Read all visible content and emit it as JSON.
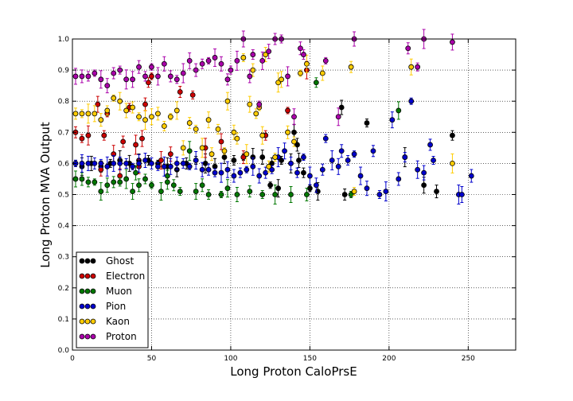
{
  "chart_data": {
    "type": "scatter",
    "title": "",
    "xlabel": "Long Proton CaloPrsE",
    "ylabel": "Long Proton MVA Output",
    "xlim": [
      0,
      280
    ],
    "ylim": [
      0.0,
      1.0
    ],
    "x_ticks": [
      "0",
      "50",
      "100",
      "150",
      "200",
      "250"
    ],
    "y_ticks": [
      "0.0",
      "0.1",
      "0.2",
      "0.3",
      "0.4",
      "0.5",
      "0.6",
      "0.7",
      "0.8",
      "0.9",
      "1.0"
    ],
    "grid": true,
    "legend_position": "lower-left",
    "series": [
      {
        "name": "Ghost",
        "color": "#000000",
        "points": [
          [
            2,
            0.6
          ],
          [
            6,
            0.59
          ],
          [
            12,
            0.6
          ],
          [
            18,
            0.59
          ],
          [
            24,
            0.6
          ],
          [
            30,
            0.61
          ],
          [
            36,
            0.6
          ],
          [
            42,
            0.61
          ],
          [
            48,
            0.61
          ],
          [
            54,
            0.6
          ],
          [
            60,
            0.59
          ],
          [
            66,
            0.58
          ],
          [
            72,
            0.6
          ],
          [
            78,
            0.61
          ],
          [
            84,
            0.6
          ],
          [
            90,
            0.59
          ],
          [
            96,
            0.62
          ],
          [
            102,
            0.61
          ],
          [
            108,
            0.62
          ],
          [
            114,
            0.62
          ],
          [
            120,
            0.62
          ],
          [
            126,
            0.6
          ],
          [
            132,
            0.61
          ],
          [
            138,
            0.6
          ],
          [
            140,
            0.7
          ],
          [
            142,
            0.66
          ],
          [
            146,
            0.57
          ],
          [
            150,
            0.52
          ],
          [
            155,
            0.51
          ],
          [
            170,
            0.78
          ],
          [
            172,
            0.5
          ],
          [
            186,
            0.73
          ],
          [
            210,
            0.62
          ],
          [
            222,
            0.53
          ],
          [
            230,
            0.51
          ],
          [
            240,
            0.69
          ],
          [
            125,
            0.53
          ],
          [
            130,
            0.52
          ],
          [
            143,
            0.61
          ]
        ]
      },
      {
        "name": "Electron",
        "color": "#cc0000",
        "points": [
          [
            2,
            0.7
          ],
          [
            6,
            0.68
          ],
          [
            10,
            0.69
          ],
          [
            16,
            0.79
          ],
          [
            18,
            0.58
          ],
          [
            20,
            0.69
          ],
          [
            22,
            0.76
          ],
          [
            26,
            0.63
          ],
          [
            30,
            0.56
          ],
          [
            32,
            0.67
          ],
          [
            36,
            0.78
          ],
          [
            40,
            0.66
          ],
          [
            44,
            0.68
          ],
          [
            46,
            0.79
          ],
          [
            48,
            0.86
          ],
          [
            50,
            0.88
          ],
          [
            56,
            0.61
          ],
          [
            62,
            0.63
          ],
          [
            68,
            0.83
          ],
          [
            76,
            0.82
          ],
          [
            84,
            0.65
          ],
          [
            94,
            0.67
          ],
          [
            108,
            0.62
          ],
          [
            122,
            0.69
          ],
          [
            136,
            0.77
          ],
          [
            148,
            0.9
          ],
          [
            42,
            0.59
          ]
        ]
      },
      {
        "name": "Muon",
        "color": "#007700",
        "points": [
          [
            2,
            0.55
          ],
          [
            6,
            0.55
          ],
          [
            10,
            0.54
          ],
          [
            14,
            0.54
          ],
          [
            18,
            0.51
          ],
          [
            22,
            0.53
          ],
          [
            26,
            0.54
          ],
          [
            30,
            0.54
          ],
          [
            34,
            0.55
          ],
          [
            38,
            0.51
          ],
          [
            42,
            0.53
          ],
          [
            46,
            0.55
          ],
          [
            50,
            0.53
          ],
          [
            56,
            0.51
          ],
          [
            60,
            0.54
          ],
          [
            64,
            0.53
          ],
          [
            68,
            0.51
          ],
          [
            74,
            0.64
          ],
          [
            78,
            0.51
          ],
          [
            82,
            0.53
          ],
          [
            86,
            0.5
          ],
          [
            94,
            0.5
          ],
          [
            98,
            0.52
          ],
          [
            104,
            0.5
          ],
          [
            112,
            0.51
          ],
          [
            120,
            0.5
          ],
          [
            128,
            0.5
          ],
          [
            138,
            0.5
          ],
          [
            148,
            0.5
          ],
          [
            154,
            0.86
          ],
          [
            176,
            0.5
          ],
          [
            206,
            0.77
          ],
          [
            40,
            0.57
          ],
          [
            60,
            0.56
          ]
        ]
      },
      {
        "name": "Pion",
        "color": "#0000cc",
        "points": [
          [
            2,
            0.6
          ],
          [
            6,
            0.6
          ],
          [
            10,
            0.6
          ],
          [
            14,
            0.6
          ],
          [
            18,
            0.6
          ],
          [
            22,
            0.59
          ],
          [
            26,
            0.6
          ],
          [
            30,
            0.6
          ],
          [
            34,
            0.6
          ],
          [
            38,
            0.59
          ],
          [
            42,
            0.6
          ],
          [
            46,
            0.61
          ],
          [
            50,
            0.6
          ],
          [
            54,
            0.59
          ],
          [
            58,
            0.59
          ],
          [
            62,
            0.59
          ],
          [
            66,
            0.6
          ],
          [
            70,
            0.6
          ],
          [
            74,
            0.59
          ],
          [
            78,
            0.61
          ],
          [
            82,
            0.58
          ],
          [
            86,
            0.58
          ],
          [
            90,
            0.57
          ],
          [
            94,
            0.57
          ],
          [
            98,
            0.58
          ],
          [
            102,
            0.56
          ],
          [
            106,
            0.57
          ],
          [
            110,
            0.58
          ],
          [
            114,
            0.59
          ],
          [
            118,
            0.56
          ],
          [
            122,
            0.57
          ],
          [
            126,
            0.58
          ],
          [
            130,
            0.62
          ],
          [
            134,
            0.64
          ],
          [
            138,
            0.6
          ],
          [
            142,
            0.57
          ],
          [
            146,
            0.62
          ],
          [
            150,
            0.56
          ],
          [
            154,
            0.53
          ],
          [
            158,
            0.58
          ],
          [
            160,
            0.68
          ],
          [
            164,
            0.61
          ],
          [
            168,
            0.59
          ],
          [
            170,
            0.64
          ],
          [
            174,
            0.61
          ],
          [
            178,
            0.63
          ],
          [
            182,
            0.56
          ],
          [
            186,
            0.52
          ],
          [
            190,
            0.64
          ],
          [
            194,
            0.5
          ],
          [
            198,
            0.51
          ],
          [
            202,
            0.74
          ],
          [
            206,
            0.55
          ],
          [
            210,
            0.62
          ],
          [
            214,
            0.8
          ],
          [
            218,
            0.58
          ],
          [
            222,
            0.57
          ],
          [
            226,
            0.66
          ],
          [
            228,
            0.61
          ],
          [
            244,
            0.5
          ],
          [
            246,
            0.5
          ],
          [
            252,
            0.56
          ]
        ]
      },
      {
        "name": "Kaon",
        "color": "#ffcc00",
        "points": [
          [
            2,
            0.76
          ],
          [
            6,
            0.76
          ],
          [
            10,
            0.76
          ],
          [
            14,
            0.76
          ],
          [
            18,
            0.74
          ],
          [
            22,
            0.77
          ],
          [
            26,
            0.81
          ],
          [
            30,
            0.8
          ],
          [
            34,
            0.77
          ],
          [
            38,
            0.78
          ],
          [
            42,
            0.75
          ],
          [
            46,
            0.74
          ],
          [
            50,
            0.75
          ],
          [
            54,
            0.76
          ],
          [
            58,
            0.72
          ],
          [
            62,
            0.75
          ],
          [
            66,
            0.77
          ],
          [
            70,
            0.65
          ],
          [
            74,
            0.73
          ],
          [
            78,
            0.71
          ],
          [
            82,
            0.65
          ],
          [
            86,
            0.74
          ],
          [
            88,
            0.63
          ],
          [
            92,
            0.71
          ],
          [
            96,
            0.64
          ],
          [
            98,
            0.8
          ],
          [
            102,
            0.7
          ],
          [
            104,
            0.68
          ],
          [
            108,
            0.94
          ],
          [
            110,
            0.63
          ],
          [
            112,
            0.79
          ],
          [
            114,
            0.9
          ],
          [
            116,
            0.76
          ],
          [
            118,
            0.78
          ],
          [
            120,
            0.69
          ],
          [
            122,
            0.95
          ],
          [
            124,
            0.59
          ],
          [
            128,
            0.62
          ],
          [
            130,
            0.86
          ],
          [
            132,
            0.87
          ],
          [
            136,
            0.7
          ],
          [
            140,
            0.67
          ],
          [
            144,
            0.89
          ],
          [
            148,
            0.92
          ],
          [
            158,
            0.89
          ],
          [
            176,
            0.91
          ],
          [
            178,
            0.51
          ],
          [
            240,
            0.6
          ],
          [
            214,
            0.91
          ]
        ]
      },
      {
        "name": "Proton",
        "color": "#aa00aa",
        "points": [
          [
            2,
            0.88
          ],
          [
            6,
            0.88
          ],
          [
            10,
            0.88
          ],
          [
            14,
            0.89
          ],
          [
            18,
            0.87
          ],
          [
            22,
            0.85
          ],
          [
            26,
            0.89
          ],
          [
            30,
            0.9
          ],
          [
            34,
            0.87
          ],
          [
            38,
            0.87
          ],
          [
            42,
            0.91
          ],
          [
            46,
            0.88
          ],
          [
            50,
            0.91
          ],
          [
            54,
            0.88
          ],
          [
            58,
            0.92
          ],
          [
            62,
            0.88
          ],
          [
            66,
            0.87
          ],
          [
            70,
            0.89
          ],
          [
            74,
            0.93
          ],
          [
            78,
            0.9
          ],
          [
            82,
            0.92
          ],
          [
            86,
            0.93
          ],
          [
            90,
            0.94
          ],
          [
            94,
            0.92
          ],
          [
            98,
            0.87
          ],
          [
            100,
            0.9
          ],
          [
            104,
            0.93
          ],
          [
            108,
            1.0
          ],
          [
            112,
            0.88
          ],
          [
            114,
            0.95
          ],
          [
            118,
            0.79
          ],
          [
            120,
            0.93
          ],
          [
            124,
            0.96
          ],
          [
            128,
            1.0
          ],
          [
            132,
            1.0
          ],
          [
            136,
            0.88
          ],
          [
            140,
            0.75
          ],
          [
            144,
            0.97
          ],
          [
            146,
            0.95
          ],
          [
            160,
            0.93
          ],
          [
            168,
            0.75
          ],
          [
            178,
            1.0
          ],
          [
            212,
            0.97
          ],
          [
            218,
            0.91
          ],
          [
            222,
            1.0
          ],
          [
            240,
            0.99
          ]
        ]
      }
    ]
  }
}
